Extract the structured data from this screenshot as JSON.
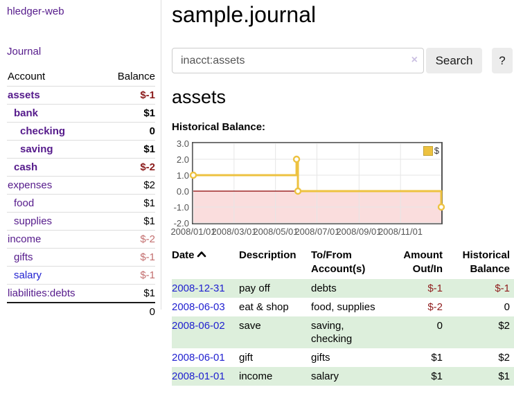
{
  "sidebar": {
    "brand": "hledger-web",
    "journal_link": "Journal",
    "accounts_header": {
      "account": "Account",
      "balance": "Balance"
    },
    "accounts": [
      {
        "name": "assets",
        "level": 1,
        "bold": true,
        "balance": "$-1",
        "balance_style": "neg-strong"
      },
      {
        "name": "bank",
        "level": 2,
        "bold": true,
        "balance": "$1",
        "balance_style": ""
      },
      {
        "name": "checking",
        "level": 3,
        "bold": true,
        "balance": "0",
        "balance_style": ""
      },
      {
        "name": "saving",
        "level": 3,
        "bold": true,
        "balance": "$1",
        "balance_style": ""
      },
      {
        "name": "cash",
        "level": 2,
        "bold": true,
        "balance": "$-2",
        "balance_style": "neg-strong"
      },
      {
        "name": "expenses",
        "level": 1,
        "bold": false,
        "balance": "$2",
        "balance_style": ""
      },
      {
        "name": "food",
        "level": 2,
        "bold": false,
        "balance": "$1",
        "balance_style": ""
      },
      {
        "name": "supplies",
        "level": 2,
        "bold": false,
        "balance": "$1",
        "balance_style": ""
      },
      {
        "name": "income",
        "level": 1,
        "bold": false,
        "balance": "$-2",
        "balance_style": "neg-soft"
      },
      {
        "name": "gifts",
        "level": 2,
        "bold": false,
        "balance": "$-1",
        "balance_style": "neg-soft"
      },
      {
        "name": "salary",
        "level": 2,
        "bold": false,
        "balance": "$-1",
        "balance_style": "neg-soft",
        "link_color": "blue"
      },
      {
        "name": "liabilities:debts",
        "level": 1,
        "bold": false,
        "balance": "$1",
        "balance_style": ""
      }
    ],
    "total": "0"
  },
  "main": {
    "title": "sample.journal",
    "search": {
      "value": "inacct:assets",
      "clear_icon": "×",
      "button_label": "Search",
      "help_label": "?"
    },
    "account_heading": "assets"
  },
  "chart_data": {
    "type": "line",
    "title": "Historical Balance:",
    "step": true,
    "series": [
      {
        "name": "$",
        "color": "#edc240",
        "points": [
          [
            "2008/01/01",
            1
          ],
          [
            "2008/06/01",
            2
          ],
          [
            "2008/06/03",
            0
          ],
          [
            "2008/12/31",
            -1
          ]
        ]
      }
    ],
    "xrange": [
      "2008/01/01",
      "2008/12/31"
    ],
    "ylim": [
      -2,
      3
    ],
    "yticks": [
      "3.0",
      "2.0",
      "1.0",
      "0.0",
      "-1.0",
      "-2.0"
    ],
    "xticks": [
      "2008/01/01",
      "2008/03/01",
      "2008/05/01",
      "2008/07/01",
      "2008/09/01",
      "2008/11/01"
    ],
    "grid": true,
    "legend_position": "top-right",
    "negative_region_color": "#fadddd",
    "zero_line_color": "#8b0000",
    "gridline_color": "#e6e6e6"
  },
  "table": {
    "headers": {
      "date": "Date",
      "description": "Description",
      "accounts": "To/From Account(s)",
      "amount": "Amount Out/In",
      "balance": "Historical Balance"
    },
    "sort": "ascending",
    "rows": [
      {
        "date": "2008-12-31",
        "description": "pay off",
        "accounts": "debts",
        "amount": "$-1",
        "balance": "$-1"
      },
      {
        "date": "2008-06-03",
        "description": "eat & shop",
        "accounts": "food, supplies",
        "amount": "$-2",
        "balance": "0"
      },
      {
        "date": "2008-06-02",
        "description": "save",
        "accounts": "saving, checking",
        "amount": "0",
        "balance": "$2"
      },
      {
        "date": "2008-06-01",
        "description": "gift",
        "accounts": "gifts",
        "amount": "$1",
        "balance": "$2"
      },
      {
        "date": "2008-01-01",
        "description": "income",
        "accounts": "salary",
        "amount": "$1",
        "balance": "$1"
      }
    ]
  },
  "colors": {
    "link_purple": "#551a8b",
    "link_blue": "#1f1fd0",
    "negative_strong": "#8b1c1c",
    "negative_soft": "#c36f6f",
    "row_green": "#ddefdc",
    "series_yellow": "#edc240"
  }
}
